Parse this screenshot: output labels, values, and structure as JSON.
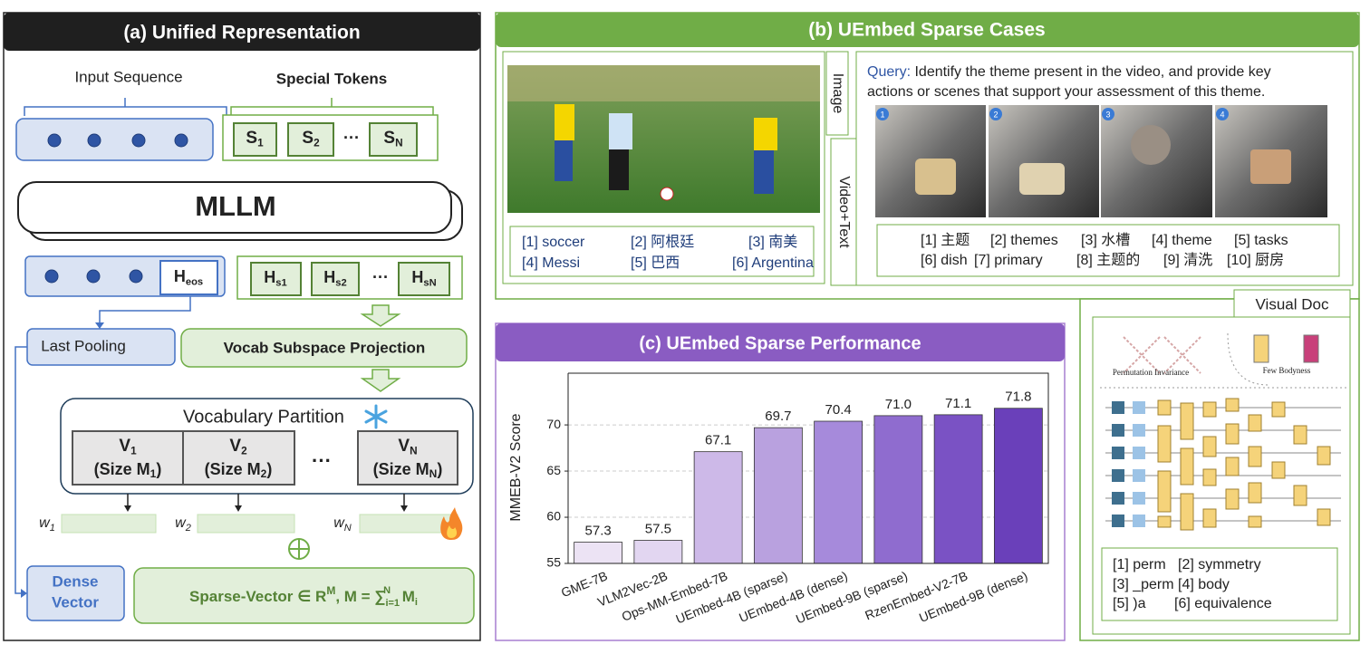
{
  "panel_a": {
    "title": "(a) Unified Representation",
    "input_sequence": "Input Sequence",
    "special_tokens": "Special Tokens",
    "tokens": [
      {
        "base": "S",
        "sub": "1"
      },
      {
        "base": "S",
        "sub": "2"
      },
      {
        "base": "S",
        "sub": "N"
      }
    ],
    "ellipsis": "···",
    "mllm": "MLLM",
    "h_eos": {
      "base": "H",
      "sub": "eos"
    },
    "hidden": [
      {
        "base": "H",
        "sub": "s1"
      },
      {
        "base": "H",
        "sub": "s2"
      },
      {
        "base": "H",
        "sub": "sN"
      }
    ],
    "last_pooling": "Last Pooling",
    "projection": "Vocab Subspace Projection",
    "partition_title": "Vocabulary Partition",
    "partitions": [
      {
        "base": "V",
        "sub": "1",
        "size": "(Size M",
        "size_sub": "1",
        "close": ")"
      },
      {
        "base": "V",
        "sub": "2",
        "size": "(Size M",
        "size_sub": "2",
        "close": ")"
      },
      {
        "base": "V",
        "sub": "N",
        "size": "(Size M",
        "size_sub": "N",
        "close": ")"
      }
    ],
    "partition_ellipsis": "···",
    "weights": [
      {
        "base": "w",
        "sub": "1"
      },
      {
        "base": "w",
        "sub": "2"
      },
      {
        "base": "w",
        "sub": "N"
      }
    ],
    "dense_vector": [
      "Dense",
      "Vector"
    ],
    "sparse_vector": [
      "Sparse-Vector ∈ R",
      "M",
      ", M = ∑",
      "i=1",
      "N",
      " M",
      "i"
    ]
  },
  "panel_b": {
    "title": "(b) UEmbed Sparse Cases",
    "image_tab": "Image",
    "video_tab": "Video+Text",
    "image_terms": [
      "[1] soccer",
      "[2] 阿根廷",
      "[3] 南美",
      "[4] Messi",
      "[5] 巴西",
      "[6] Argentina"
    ],
    "query_label": "Query:",
    "query_lines": [
      "Identify the theme present in the video, and provide key",
      "actions or scenes that support your assessment of this theme."
    ],
    "frame_numbers": [
      "1",
      "2",
      "3",
      "4"
    ],
    "video_terms": [
      "[1] 主题",
      "[2] themes",
      "[3] 水槽",
      "[4] theme",
      "[5] tasks",
      "[6] dish",
      "[7] primary",
      "[8] 主题的",
      "[9] 清洗",
      "[10] 厨房"
    ],
    "doc_tab": "Visual Doc",
    "doc_labels": [
      "Permutation Invariance",
      "Few Bodyness"
    ],
    "doc_terms": [
      "[1] perm",
      "[2] symmetry",
      "[3] _perm",
      "[4] body",
      "[5] )a",
      "[6] equivalence"
    ]
  },
  "chart_data": {
    "type": "bar",
    "title": "(c) UEmbed Sparse Performance",
    "y_label": "MMEB-V2 Score",
    "categories": [
      "GME-7B",
      "VLM2Vec-2B",
      "Ops-MM-Embed-7B",
      "UEmbed-4B (sparse)",
      "UEmbed-4B (dense)",
      "UEmbed-9B (sparse)",
      "RzenEmbed-V2-7B",
      "UEmbed-9B (dense)"
    ],
    "values": [
      57.3,
      57.5,
      67.1,
      69.7,
      70.4,
      71.0,
      71.1,
      71.8
    ],
    "value_labels": [
      "57.3",
      "57.5",
      "67.1",
      "69.7",
      "70.4",
      "71.0",
      "71.1",
      "71.8"
    ],
    "colors": [
      "#ece3f4",
      "#e2d6f1",
      "#cdb9e8",
      "#b9a1df",
      "#a68adb",
      "#8f6ccf",
      "#7a52c4",
      "#6a40ba"
    ],
    "ylim": [
      55,
      75.6
    ],
    "yticks": [
      55,
      60,
      65,
      70
    ],
    "grid": true
  }
}
